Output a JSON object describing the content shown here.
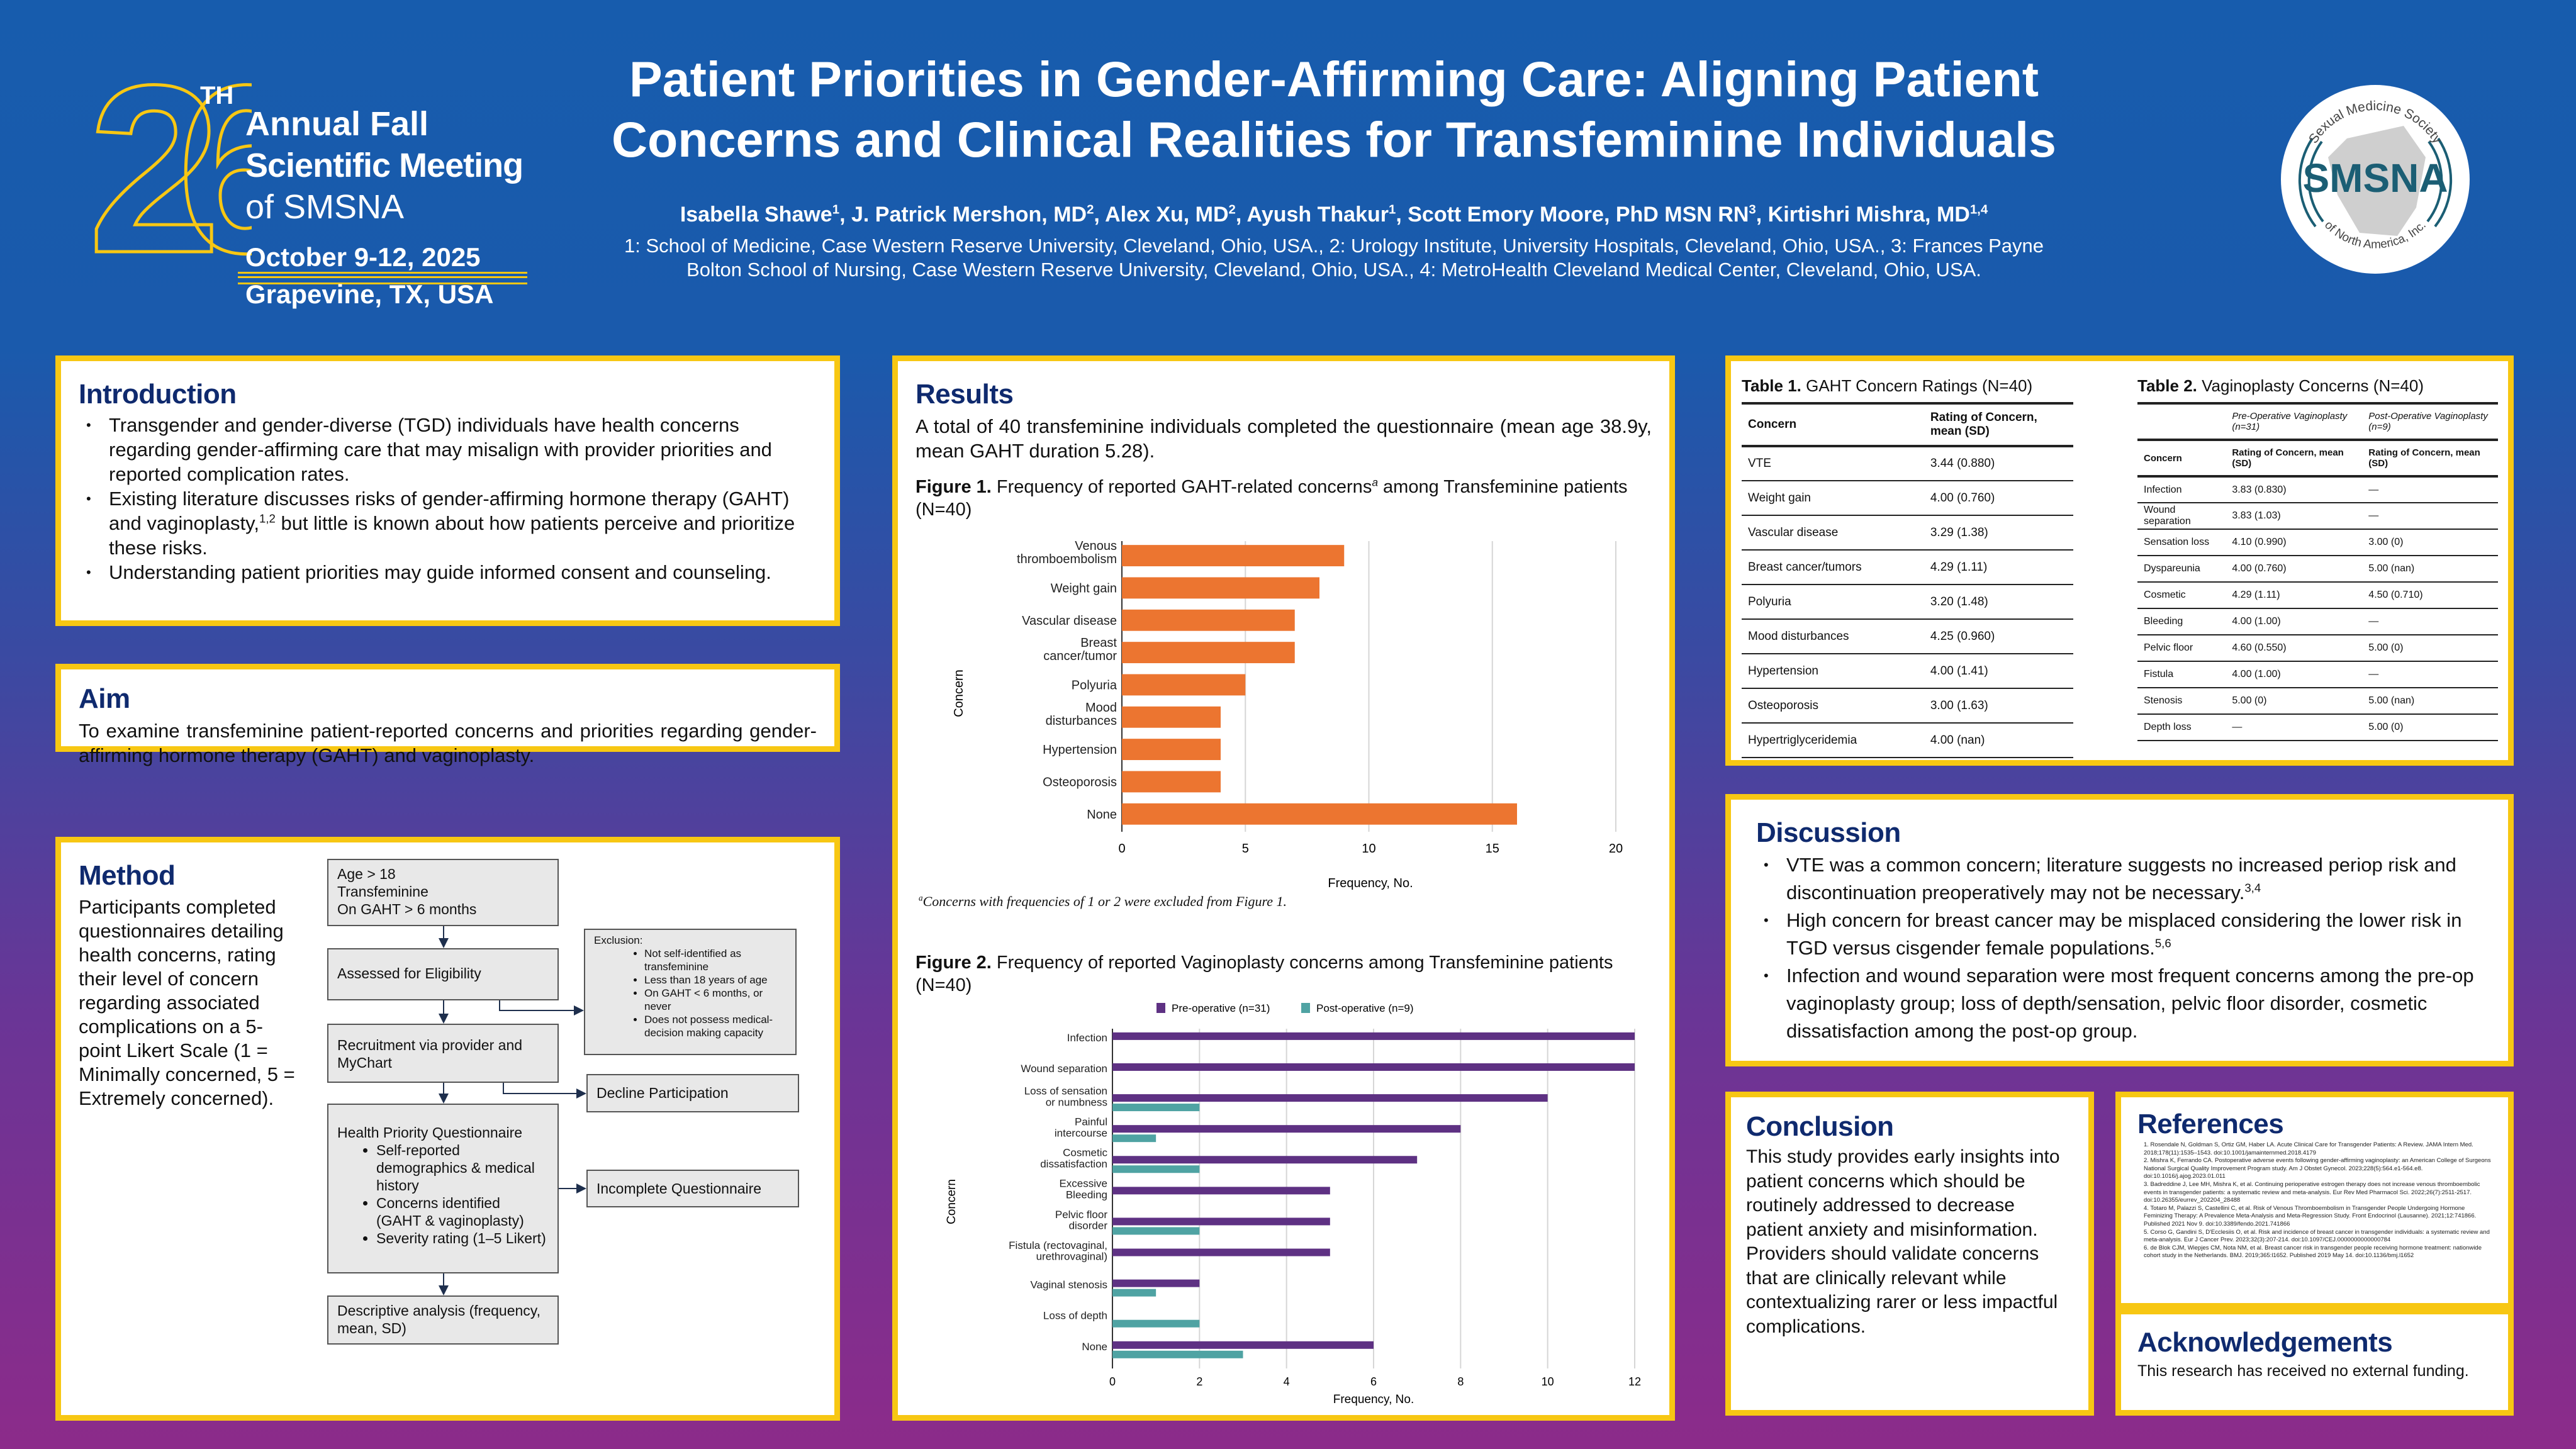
{
  "meeting_logo": {
    "number": "26",
    "ordinal": "TH",
    "line1": "Annual Fall",
    "line2": "Scientific Meeting",
    "line3": "of SMSNA",
    "dates": "October 9-12, 2025",
    "location": "Grapevine, TX, USA",
    "accent": "#f7c713"
  },
  "org_logo": {
    "top_arc": "Sexual Medicine Society",
    "abbr": "SMSNA",
    "bottom_arc": "of North America, Inc.",
    "color": "#1b5e74"
  },
  "header": {
    "title_line1": "Patient Priorities in Gender-Affirming Care: Aligning Patient",
    "title_line2": "Concerns and Clinical Realities for Transfeminine Individuals",
    "authors": [
      {
        "name": "Isabella Shawe",
        "sup": "1"
      },
      {
        "name": "J. Patrick Mershon, MD",
        "sup": "2"
      },
      {
        "name": "Alex Xu, MD",
        "sup": "2"
      },
      {
        "name": "Ayush Thakur",
        "sup": "1"
      },
      {
        "name": "Scott Emory Moore, PhD MSN RN",
        "sup": "3"
      },
      {
        "name": "Kirtishri Mishra, MD",
        "sup": "1,4"
      }
    ],
    "affiliations_line1": "1: School of Medicine, Case Western Reserve University, Cleveland, Ohio, USA., 2: Urology Institute, University Hospitals, Cleveland, Ohio, USA., 3: Frances Payne",
    "affiliations_line2": "Bolton School of Nursing, Case Western Reserve University, Cleveland, Ohio, USA., 4: MetroHealth Cleveland Medical Center, Cleveland, Ohio, USA."
  },
  "introduction": {
    "heading": "Introduction",
    "b1": "Transgender and gender-diverse (TGD) individuals have health concerns regarding gender-affirming care that may misalign with provider priorities and reported complication rates.",
    "b2_before": "Existing literature discusses risks of gender-affirming hormone therapy (GAHT) and vaginoplasty,",
    "b2_sup": "1,2",
    "b2_after": " but little is known about how patients perceive and prioritize these risks.",
    "b3": "Understanding patient priorities may guide informed consent and counseling."
  },
  "aim": {
    "heading": "Aim",
    "text": "To examine transfeminine patient-reported concerns and priorities regarding gender-affirming hormone therapy (GAHT) and vaginoplasty."
  },
  "method": {
    "heading": "Method",
    "text": "Participants completed questionnaires detailing health concerns, rating their level of concern regarding associated complications on a 5-point Likert Scale (1 = Minimally concerned, 5 = Extremely concerned).",
    "flow": {
      "inclusion": [
        "Age > 18",
        "Transfeminine",
        "On GAHT > 6 months"
      ],
      "assessed": "Assessed for Eligibility",
      "recruitment": "Recruitment via provider and MyChart",
      "questionnaire_title": "Health Priority Questionnaire",
      "questionnaire_items": [
        "Self-reported demographics & medical history",
        "Concerns identified (GAHT & vaginoplasty)",
        "Severity rating (1–5 Likert)"
      ],
      "analysis": "Descriptive analysis (frequency, mean, SD)",
      "exclusion_title": "Exclusion:",
      "exclusion_items": [
        "Not self-identified as transfeminine",
        "Less than 18 years of age",
        "On GAHT < 6 months, or never",
        "Does not possess medical-decision making capacity"
      ],
      "decline": "Decline Participation",
      "incomplete": "Incomplete Questionnaire"
    }
  },
  "results": {
    "heading": "Results",
    "text": "A total of 40 transfeminine individuals completed the questionnaire (mean age 38.9y, mean GAHT duration 5.28).",
    "fig1_label": "Figure 1.",
    "fig1_caption": " Frequency of reported GAHT-related concerns",
    "fig1_sup": "a",
    "fig1_caption_end": " among Transfeminine patients (N=40)",
    "fig1_footnote_sup": "a",
    "fig1_footnote": "Concerns with frequencies of 1 or 2 were excluded from Figure 1.",
    "fig2_label": "Figure 2.",
    "fig2_caption": " Frequency of reported Vaginoplasty concerns among Transfeminine patients (N=40)"
  },
  "chart_data": [
    {
      "type": "bar",
      "orientation": "horizontal",
      "xlabel": "Frequency, No.",
      "ylabel": "Concern",
      "xlim": [
        0,
        20
      ],
      "xticks": [
        0,
        5,
        10,
        15,
        20
      ],
      "grid": true,
      "color": "#ec7530",
      "categories": [
        "Venous thromboembolism",
        "Weight gain",
        "Vascular disease",
        "Breast cancer/tumor",
        "Polyuria",
        "Mood disturbances",
        "Hypertension",
        "Osteoporosis",
        "None"
      ],
      "values": [
        9,
        8,
        7,
        7,
        5,
        4,
        4,
        4,
        16
      ]
    },
    {
      "type": "bar",
      "orientation": "horizontal",
      "xlabel": "Frequency, No.",
      "ylabel": "Concern",
      "xlim": [
        0,
        12
      ],
      "xticks": [
        0,
        2,
        4,
        6,
        8,
        10,
        12
      ],
      "grid": true,
      "legend": "top",
      "categories": [
        "Infection",
        "Wound separation",
        "Loss of sensation or numbness",
        "Painful intercourse",
        "Cosmetic dissatisfaction",
        "Excessive Bleeding",
        "Pelvic floor disorder",
        "Fistula (rectovaginal, urethrovaginal)",
        "Vaginal stenosis",
        "Loss of depth",
        "None"
      ],
      "series": [
        {
          "name": "Pre-operative (n=31)",
          "color": "#5e3183",
          "values": [
            12,
            12,
            10,
            8,
            7,
            5,
            5,
            5,
            2,
            0,
            6
          ]
        },
        {
          "name": "Post-operative (n=9)",
          "color": "#4fa3a3",
          "values": [
            0,
            0,
            2,
            1,
            2,
            0,
            2,
            0,
            1,
            2,
            3
          ]
        }
      ]
    }
  ],
  "table1": {
    "label": "Table 1.",
    "title": " GAHT Concern Ratings (N=40)",
    "headers": [
      "Concern",
      "Rating of Concern, mean (SD)"
    ],
    "rows": [
      [
        "VTE",
        "3.44 (0.880)"
      ],
      [
        "Weight gain",
        "4.00 (0.760)"
      ],
      [
        "Vascular disease",
        "3.29 (1.38)"
      ],
      [
        "Breast cancer/tumors",
        "4.29 (1.11)"
      ],
      [
        "Polyuria",
        "3.20 (1.48)"
      ],
      [
        "Mood disturbances",
        "4.25 (0.960)"
      ],
      [
        "Hypertension",
        "4.00 (1.41)"
      ],
      [
        "Osteoporosis",
        "3.00 (1.63)"
      ],
      [
        "Hypertriglyceridemia",
        "4.00 (nan)"
      ]
    ]
  },
  "table2": {
    "label": "Table 2.",
    "title": " Vaginoplasty Concerns (N=40)",
    "groups": [
      "",
      "Pre-Operative Vaginoplasty (n=31)",
      "Post-Operative Vaginoplasty (n=9)"
    ],
    "headers": [
      "Concern",
      "Rating of Concern, mean (SD)",
      "Rating of Concern, mean (SD)"
    ],
    "rows": [
      [
        "Infection",
        "3.83 (0.830)",
        "—"
      ],
      [
        "Wound separation",
        "3.83 (1.03)",
        "—"
      ],
      [
        "Sensation loss",
        "4.10 (0.990)",
        "3.00 (0)"
      ],
      [
        "Dyspareunia",
        "4.00 (0.760)",
        "5.00 (nan)"
      ],
      [
        "Cosmetic",
        "4.29 (1.11)",
        "4.50 (0.710)"
      ],
      [
        "Bleeding",
        "4.00 (1.00)",
        "—"
      ],
      [
        "Pelvic floor",
        "4.60 (0.550)",
        "5.00 (0)"
      ],
      [
        "Fistula",
        "4.00 (1.00)",
        "—"
      ],
      [
        "Stenosis",
        "5.00 (0)",
        "5.00 (nan)"
      ],
      [
        "Depth loss",
        "—",
        "5.00 (0)"
      ]
    ]
  },
  "discussion": {
    "heading": "Discussion",
    "items": [
      {
        "text": "VTE was a common concern; literature suggests no increased periop risk and discontinuation preoperatively may not be necessary.",
        "sup": "3,4"
      },
      {
        "text": "High concern for breast cancer may be misplaced considering the lower risk in TGD versus cisgender female populations.",
        "sup": "5,6"
      },
      {
        "text": "Infection and wound separation were most frequent concerns among the pre-op vaginoplasty group; loss of depth/sensation, pelvic floor disorder, cosmetic dissatisfaction among the post-op group.",
        "sup": ""
      }
    ]
  },
  "conclusion": {
    "heading": "Conclusion",
    "text": "This study provides early insights into patient concerns which should be routinely addressed to decrease patient anxiety and misinformation. Providers should validate concerns that are clinically relevant while contextualizing rarer or less impactful complications."
  },
  "references": {
    "heading": "References",
    "items": [
      "1. Rosendale N, Goldman S, Ortiz GM, Haber LA. Acute Clinical Care for Transgender Patients: A Review. JAMA Intern Med. 2018;178(11):1535–1543. doi:10.1001/jamainternmed.2018.4179",
      "2. Mishra K, Ferrando CA. Postoperative adverse events following gender-affirming vaginoplasty: an American College of Surgeons National Surgical Quality Improvement Program study. Am J Obstet Gynecol. 2023;228(5):564.e1-564.e8. doi:10.1016/j.ajog.2023.01.011",
      "3. Badreddine J, Lee MH, Mishra K, et al. Continuing perioperative estrogen therapy does not increase venous thromboembolic events in transgender patients: a systematic review and meta-analysis. Eur Rev Med Pharmacol Sci. 2022;26(7):2511-2517. doi:10.26355/eurrev_202204_28488",
      "4. Totaro M, Palazzi S, Castellini C, et al. Risk of Venous Thromboembolism in Transgender People Undergoing Hormone Feminizing Therapy: A Prevalence Meta-Analysis and Meta-Regression Study. Front Endocrinol (Lausanne). 2021;12:741866. Published 2021 Nov 9. doi:10.3389/fendo.2021.741866",
      "5. Corso G, Gandini S, D'Ecclesiis O, et al. Risk and incidence of breast cancer in transgender individuals: a systematic review and meta-analysis. Eur J Cancer Prev. 2023;32(3):207-214. doi:10.1097/CEJ.0000000000000784",
      "6. de Blok CJM, Wiepjes CM, Nota NM, et al. Breast cancer risk in transgender people receiving hormone treatment: nationwide cohort study in the Netherlands. BMJ. 2019;365:l1652. Published 2019 May 14. doi:10.1136/bmj.l1652"
    ]
  },
  "acknowledgements": {
    "heading": "Acknowledgements",
    "text": "This research has received no external funding."
  }
}
